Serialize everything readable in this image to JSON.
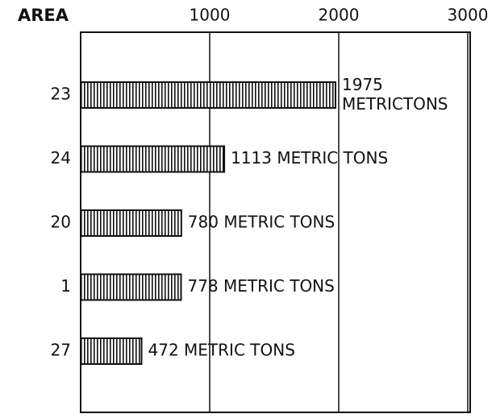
{
  "chart_data": {
    "type": "barh",
    "ylabel": "AREA",
    "categories": [
      "23",
      "24",
      "20",
      "1",
      "27"
    ],
    "values": [
      1975,
      1113,
      780,
      778,
      472
    ],
    "value_labels": [
      "1975 METRICTONS",
      "1113 METRIC TONS",
      "780 METRIC TONS",
      "778 METRIC TONS",
      "472 METRIC TONS"
    ],
    "color": "#111111",
    "xlim": [
      0,
      3000
    ],
    "xticks": [
      1000,
      2000,
      3000
    ],
    "grid": true
  }
}
